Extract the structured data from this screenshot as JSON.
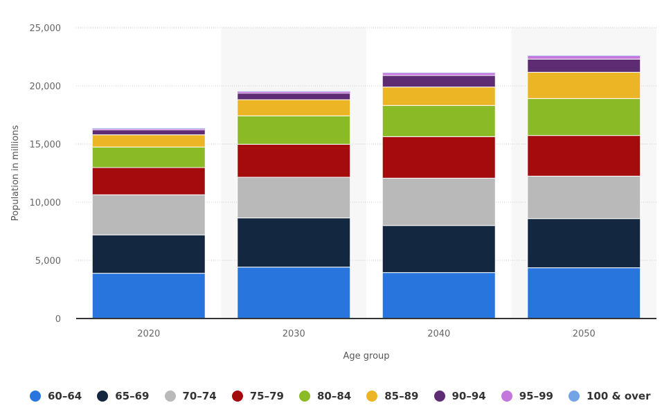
{
  "chart_data": {
    "type": "bar",
    "stacked": true,
    "title": "",
    "xlabel": "Age group",
    "ylabel": "Population in millions",
    "ylim": [
      0,
      25000
    ],
    "yticks": [
      0,
      5000,
      10000,
      15000,
      20000,
      25000
    ],
    "ytick_labels": [
      "0",
      "5,000",
      "10,000",
      "15,000",
      "20,000",
      "25,000"
    ],
    "grid": true,
    "legend_position": "bottom",
    "categories": [
      "2020",
      "2030",
      "2040",
      "2050"
    ],
    "series": [
      {
        "name": "60-64",
        "color": "#2876dd",
        "values": [
          3890,
          4420,
          3950,
          4365
        ]
      },
      {
        "name": "65-69",
        "color": "#132840",
        "values": [
          3300,
          4230,
          4045,
          4225
        ]
      },
      {
        "name": "70-74",
        "color": "#b9b9b9",
        "values": [
          3447,
          3493,
          4070,
          3650
        ]
      },
      {
        "name": "75-79",
        "color": "#a30b0d",
        "values": [
          2339,
          2837,
          3570,
          3495
        ]
      },
      {
        "name": "80-84",
        "color": "#8aba26",
        "values": [
          1766,
          2440,
          2680,
          3175
        ]
      },
      {
        "name": "85-89",
        "color": "#ecb526",
        "values": [
          1052,
          1390,
          1585,
          2260
        ]
      },
      {
        "name": "90-94",
        "color": "#5d2c73",
        "values": [
          416,
          555,
          993,
          1130
        ]
      },
      {
        "name": "95-99",
        "color": "#c476dc",
        "values": [
          120,
          160,
          237,
          300
        ]
      },
      {
        "name": "100 & over",
        "color": "#72a5e5",
        "values": [
          20,
          20,
          23,
          20
        ]
      }
    ]
  },
  "legend": {
    "items": [
      {
        "label": "60–64",
        "color": "#2876dd"
      },
      {
        "label": "65–69",
        "color": "#132840"
      },
      {
        "label": "70–74",
        "color": "#b9b9b9"
      },
      {
        "label": "75–79",
        "color": "#a30b0d"
      },
      {
        "label": "80–84",
        "color": "#8aba26"
      },
      {
        "label": "85–89",
        "color": "#ecb526"
      },
      {
        "label": "90–94",
        "color": "#5d2c73"
      },
      {
        "label": "95–99",
        "color": "#c476dc"
      },
      {
        "label": "100 & over",
        "color": "#72a5e5"
      }
    ]
  }
}
